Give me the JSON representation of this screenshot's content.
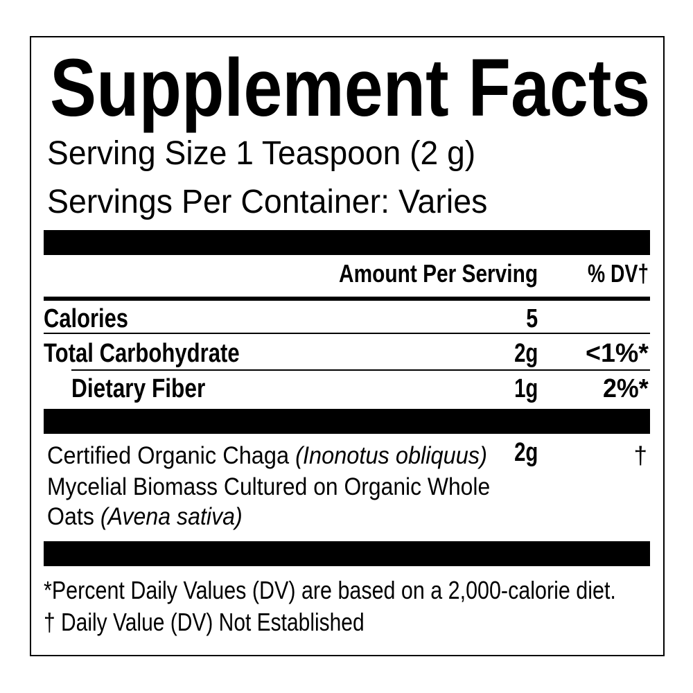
{
  "title": "Supplement Facts",
  "serving_size": "Serving Size 1 Teaspoon (2 g)",
  "servings_per_container": "Servings Per Container: Varies",
  "header": {
    "amount": "Amount Per Serving",
    "dv": "% DV†"
  },
  "nutrients": [
    {
      "name": "Calories",
      "amount": "5",
      "dv": ""
    },
    {
      "name": "Total Carbohydrate",
      "amount": "2g",
      "dv": "<1%*"
    },
    {
      "name": "Dietary Fiber",
      "amount": "1g",
      "dv": "2%*"
    }
  ],
  "ingredient": {
    "line1_a": "Certified Organic Chaga ",
    "line1_b": "(Inonotus obliquus)",
    "line2": "Mycelial Biomass Cultured on Organic Whole",
    "line3_a": "Oats ",
    "line3_b": "(Avena sativa)",
    "amount": "2g",
    "dv": "†"
  },
  "footnotes": [
    "*Percent Daily Values (DV) are based on a 2,000-calorie diet.",
    "† Daily Value (DV) Not Established"
  ]
}
